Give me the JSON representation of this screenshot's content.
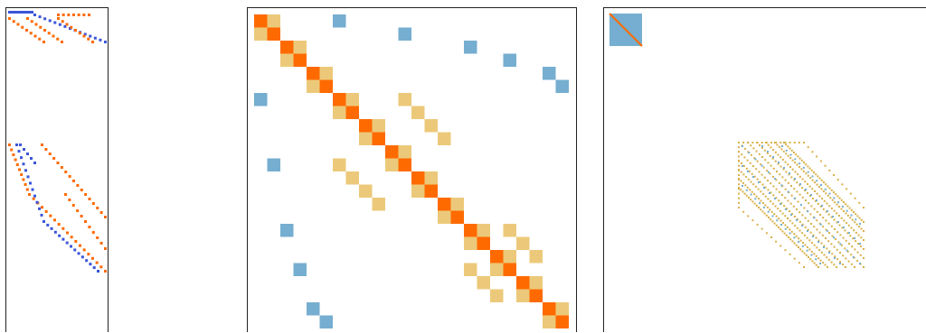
{
  "figure": {
    "panels": [
      {
        "id": "left",
        "description_name": "sparsity-pattern-left"
      },
      {
        "id": "middle",
        "description_name": "block-matrix-middle"
      },
      {
        "id": "right",
        "description_name": "sparsity-pattern-right"
      }
    ]
  },
  "colors": {
    "dark_orange": "#ff6a00",
    "light_gold": "#ecc97a",
    "steel_blue": "#75aed0",
    "royal_blue": "#3b55d8",
    "gold_line": "#d9b04a",
    "border": "#222222",
    "background": "#ffffff"
  },
  "chart_data": {
    "type": "heatmap",
    "middle_matrix": {
      "size": 24,
      "dark_diagonal": [
        0,
        1,
        2,
        3,
        4,
        5,
        6,
        7,
        8,
        9,
        10,
        11,
        12,
        13,
        14,
        15,
        16,
        17,
        18,
        19,
        20,
        21,
        22,
        23
      ],
      "light_pairs": [
        [
          0,
          1
        ],
        [
          1,
          0
        ],
        [
          2,
          3
        ],
        [
          3,
          2
        ],
        [
          4,
          5
        ],
        [
          5,
          4
        ],
        [
          6,
          7
        ],
        [
          7,
          6
        ],
        [
          8,
          9
        ],
        [
          9,
          8
        ],
        [
          10,
          11
        ],
        [
          11,
          10
        ],
        [
          12,
          13
        ],
        [
          13,
          12
        ],
        [
          14,
          15
        ],
        [
          15,
          14
        ],
        [
          16,
          17
        ],
        [
          17,
          16
        ],
        [
          18,
          19
        ],
        [
          19,
          18
        ],
        [
          20,
          21
        ],
        [
          21,
          20
        ],
        [
          22,
          23
        ],
        [
          23,
          22
        ],
        [
          6,
          11
        ],
        [
          7,
          12
        ],
        [
          8,
          13
        ],
        [
          9,
          14
        ],
        [
          11,
          6
        ],
        [
          12,
          7
        ],
        [
          13,
          8
        ],
        [
          14,
          9
        ],
        [
          16,
          19
        ],
        [
          17,
          20
        ],
        [
          18,
          21
        ],
        [
          19,
          16
        ],
        [
          20,
          17
        ],
        [
          21,
          18
        ]
      ],
      "blue_cells": [
        [
          0,
          6
        ],
        [
          1,
          11
        ],
        [
          2,
          16
        ],
        [
          3,
          19
        ],
        [
          4,
          22
        ],
        [
          5,
          23
        ],
        [
          6,
          0
        ],
        [
          11,
          1
        ],
        [
          16,
          2
        ],
        [
          19,
          3
        ],
        [
          22,
          4
        ],
        [
          23,
          5
        ]
      ]
    }
  }
}
